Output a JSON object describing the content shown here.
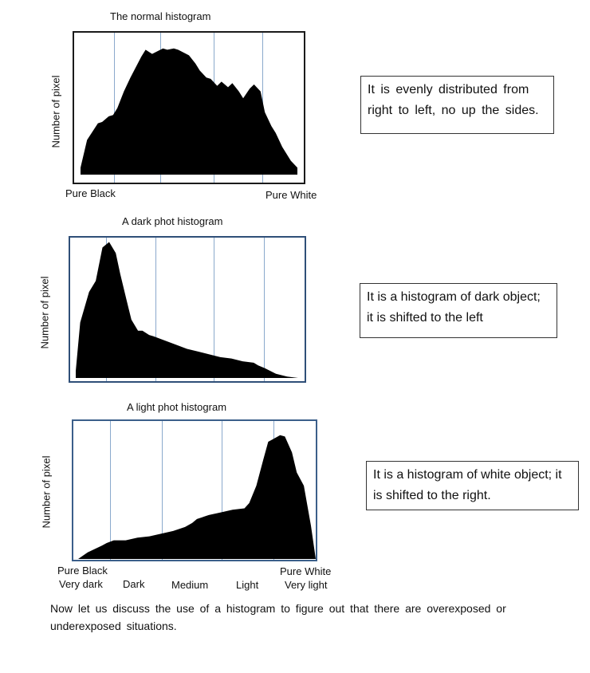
{
  "charts": [
    {
      "title": "The normal histogram",
      "ylabel": "Number of pixel",
      "left_tick": "Pure Black",
      "right_tick": "Pure White",
      "note": "It is evenly distributed from right to left, no up the sides."
    },
    {
      "title": "A dark phot histogram",
      "ylabel": "Number of pixel",
      "note": "It is a histogram of dark object; it is shifted to the left"
    },
    {
      "title": "A light phot histogram",
      "ylabel": "Number of pixel",
      "note": "It is a histogram of white object; it is shifted to the right.",
      "x_labels_top": [
        "Pure Black",
        "Pure White"
      ],
      "x_labels_bottom": [
        "Very dark",
        "Dark",
        "Medium",
        "Light",
        "Very light"
      ]
    }
  ],
  "paragraph": "Now let us discuss the use of a histogram to figure out that there are overexposed or underexposed situations.",
  "chart_data": [
    {
      "type": "area",
      "title": "The normal histogram",
      "ylabel": "Number of pixel",
      "x": [
        0,
        0.03,
        0.08,
        0.1,
        0.13,
        0.15,
        0.17,
        0.2,
        0.23,
        0.28,
        0.3,
        0.33,
        0.38,
        0.4,
        0.43,
        0.45,
        0.5,
        0.53,
        0.55,
        0.58,
        0.6,
        0.63,
        0.65,
        0.68,
        0.7,
        0.73,
        0.75,
        0.78,
        0.8,
        0.83,
        0.85,
        0.88,
        0.9,
        0.93,
        0.97,
        1
      ],
      "values": [
        0.05,
        0.25,
        0.37,
        0.38,
        0.42,
        0.43,
        0.48,
        0.6,
        0.7,
        0.85,
        0.9,
        0.87,
        0.91,
        0.9,
        0.91,
        0.9,
        0.86,
        0.8,
        0.75,
        0.7,
        0.69,
        0.64,
        0.67,
        0.63,
        0.66,
        0.6,
        0.55,
        0.62,
        0.65,
        0.6,
        0.45,
        0.35,
        0.3,
        0.2,
        0.1,
        0.05
      ],
      "ylim": [
        0,
        1
      ]
    },
    {
      "type": "area",
      "title": "A dark phot histogram",
      "ylabel": "Number of pixel",
      "x": [
        0,
        0.02,
        0.06,
        0.09,
        0.12,
        0.15,
        0.18,
        0.2,
        0.23,
        0.25,
        0.28,
        0.3,
        0.33,
        0.35,
        0.4,
        0.45,
        0.5,
        0.55,
        0.6,
        0.65,
        0.7,
        0.75,
        0.8,
        0.82,
        0.85,
        0.9,
        0.95,
        1
      ],
      "values": [
        0.05,
        0.4,
        0.62,
        0.7,
        0.94,
        0.98,
        0.9,
        0.75,
        0.55,
        0.42,
        0.34,
        0.34,
        0.31,
        0.3,
        0.27,
        0.24,
        0.21,
        0.19,
        0.17,
        0.15,
        0.14,
        0.12,
        0.11,
        0.09,
        0.07,
        0.03,
        0.01,
        0
      ],
      "ylim": [
        0,
        1
      ]
    },
    {
      "type": "area",
      "title": "A light phot histogram",
      "ylabel": "Number of pixel",
      "categories": [
        "Very dark",
        "Dark",
        "Medium",
        "Light",
        "Very light"
      ],
      "x": [
        0,
        0.04,
        0.1,
        0.12,
        0.15,
        0.2,
        0.25,
        0.3,
        0.35,
        0.4,
        0.45,
        0.48,
        0.5,
        0.55,
        0.6,
        0.65,
        0.7,
        0.72,
        0.75,
        0.78,
        0.8,
        0.82,
        0.85,
        0.87,
        0.9,
        0.92,
        0.95,
        0.98,
        1
      ],
      "values": [
        0,
        0.05,
        0.1,
        0.12,
        0.14,
        0.14,
        0.16,
        0.17,
        0.19,
        0.21,
        0.24,
        0.27,
        0.3,
        0.33,
        0.35,
        0.37,
        0.38,
        0.42,
        0.55,
        0.75,
        0.88,
        0.9,
        0.93,
        0.92,
        0.8,
        0.65,
        0.55,
        0.25,
        0
      ],
      "ylim": [
        0,
        1
      ]
    }
  ]
}
